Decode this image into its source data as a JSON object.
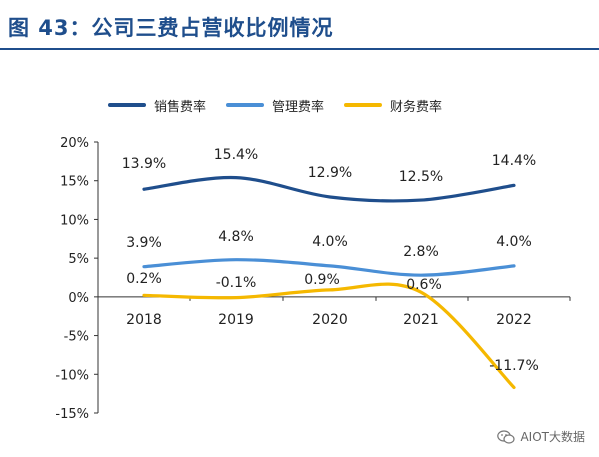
{
  "figure": {
    "title": "图 43：公司三费占营收比例情况"
  },
  "chart_data": {
    "type": "line",
    "categories": [
      "2018",
      "2019",
      "2020",
      "2021",
      "2022"
    ],
    "ylim": [
      -15,
      20
    ],
    "yticks": [
      20,
      15,
      10,
      5,
      0,
      -5,
      -10,
      -15
    ],
    "ytick_labels": [
      "20%",
      "15%",
      "10%",
      "5%",
      "0%",
      "-5%",
      "-10%",
      "-15%"
    ],
    "grid": false,
    "legend_position": "top",
    "series": [
      {
        "name": "销售费率",
        "color": "#1f4e8c",
        "values": [
          13.9,
          15.4,
          12.9,
          12.5,
          14.4
        ],
        "labels": [
          "13.9%",
          "15.4%",
          "12.9%",
          "12.5%",
          "14.4%"
        ]
      },
      {
        "name": "管理费率",
        "color": "#4a8fd6",
        "values": [
          3.9,
          4.8,
          4.0,
          2.8,
          4.0
        ],
        "labels": [
          "3.9%",
          "4.8%",
          "4.0%",
          "2.8%",
          "4.0%"
        ]
      },
      {
        "name": "财务费率",
        "color": "#f5b800",
        "values": [
          0.2,
          -0.1,
          0.9,
          0.6,
          -11.7
        ],
        "labels": [
          "0.2%",
          "-0.1%",
          "0.9%",
          "0.6%",
          "-11.7%"
        ]
      }
    ]
  },
  "watermark": {
    "text": "AIOT大数据",
    "icon": "wechat-icon"
  }
}
